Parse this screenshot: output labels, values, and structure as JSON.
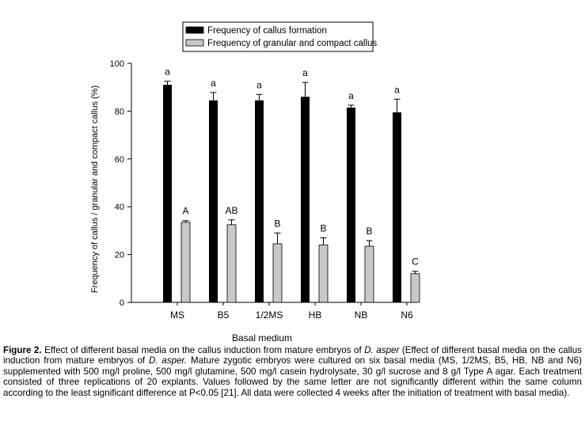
{
  "chart_data": {
    "type": "bar",
    "ylabel": "Frequency of callus / granular and compact callus (%)",
    "xlabel": "Basal medium",
    "ylim": [
      0,
      100
    ],
    "yticks": [
      0,
      20,
      40,
      60,
      80,
      100
    ],
    "grid": false,
    "legend_position": "top",
    "categories": [
      "MS",
      "B5",
      "1/2MS",
      "HB",
      "NB",
      "N6"
    ],
    "series": [
      {
        "name": "Frequency of callus formation",
        "color": "#000000",
        "values": [
          91,
          84.5,
          84.5,
          86,
          81.5,
          79.5
        ],
        "errors": [
          1.5,
          3.3,
          2.5,
          6,
          1,
          5.5
        ],
        "letters": [
          "a",
          "a",
          "a",
          "a",
          "a",
          "a"
        ]
      },
      {
        "name": "Frequency of granular and compact callus",
        "color": "#c8c8c8",
        "values": [
          33.5,
          32.5,
          24.5,
          24,
          23.5,
          12
        ],
        "errors": [
          0.7,
          2,
          4.5,
          3,
          2.3,
          1
        ],
        "letters": [
          "A",
          "AB",
          "B",
          "B",
          "B",
          "C"
        ]
      }
    ]
  },
  "caption": {
    "label": "Figure 2.",
    "t1": " Effect of different basal media on the callus induction from mature embryos of ",
    "sp1": "D. asper",
    "t2": " (Effect of different basal media on the callus induction from mature embryos of ",
    "sp2": "D. asper.",
    "t3": " Mature zygotic embryos were cultured on six basal media (MS, 1/2MS, B5, HB, NB and N6) supplemented with 500 mg/l proline, 500 mg/l glutamine, 500 mg/l casein hydrolysate, 30 g/l sucrose and 8 g/l Type A agar. Each treatment consisted of three replications of 20 explants. Values followed by the same letter are not significantly different within the same column according to the least significant difference at P<0.05 [21]. All data were collected 4 weeks after the initiation of treatment with basal media)."
  }
}
